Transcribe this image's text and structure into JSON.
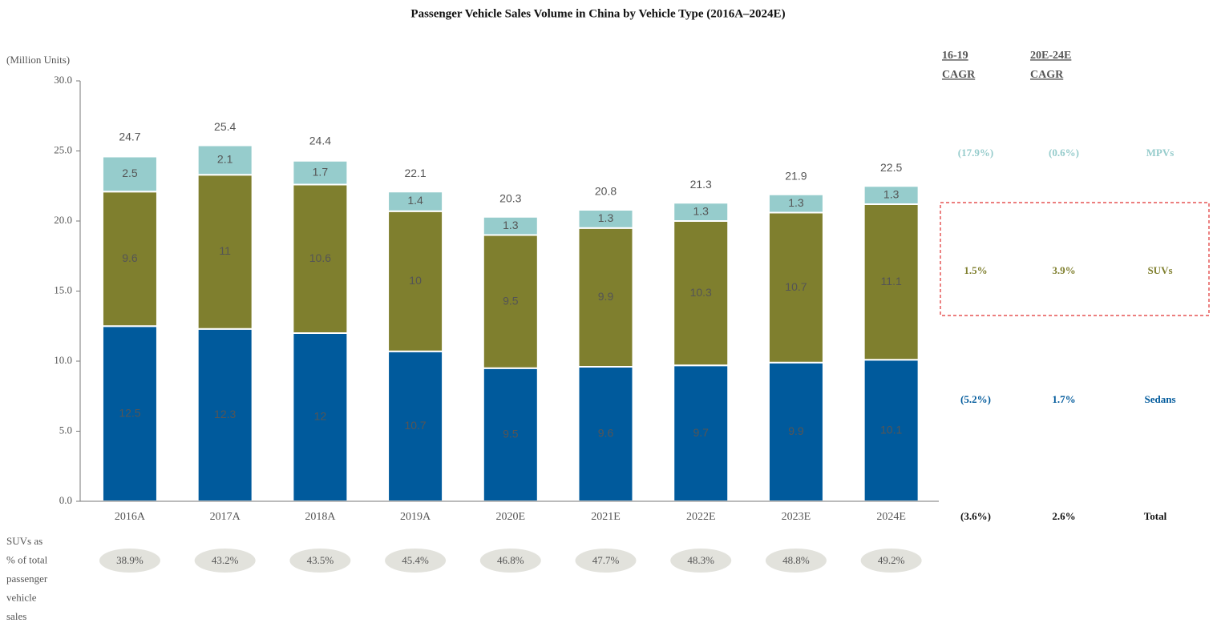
{
  "chart_data": {
    "type": "stacked_bar",
    "title": "Passenger Vehicle Sales Volume in China by Vehicle Type (2016A–2024E)",
    "y_label": "(Million Units)",
    "categories": [
      "2016A",
      "2017A",
      "2018A",
      "2019A",
      "2020E",
      "2021E",
      "2022E",
      "2023E",
      "2024E"
    ],
    "series": [
      {
        "name": "Sedans",
        "color": "#005a9c",
        "label_color": "#ffffff",
        "values": [
          12.5,
          12.3,
          12.0,
          10.7,
          9.5,
          9.6,
          9.7,
          9.9,
          10.1
        ]
      },
      {
        "name": "SUVs",
        "color": "#7f7f2e",
        "label_color": "#ffffff",
        "values": [
          9.6,
          11.0,
          10.6,
          10.0,
          9.5,
          9.9,
          10.3,
          10.7,
          11.1
        ]
      },
      {
        "name": "MPVs",
        "color": "#96cccc",
        "label_color": "#ffffff",
        "values": [
          2.5,
          2.1,
          1.7,
          1.4,
          1.3,
          1.3,
          1.3,
          1.3,
          1.3
        ]
      }
    ],
    "totals": [
      24.7,
      25.4,
      24.4,
      22.1,
      20.3,
      20.8,
      21.3,
      21.9,
      22.5
    ],
    "ylim": [
      0,
      30
    ],
    "yticks": [
      {
        "value": 0,
        "label": "0.0"
      },
      {
        "value": 5,
        "label": "5.0"
      },
      {
        "value": 10,
        "label": "10.0"
      },
      {
        "value": 15,
        "label": "15.0"
      },
      {
        "value": 20,
        "label": "20.0"
      },
      {
        "value": 25,
        "label": "25.0"
      },
      {
        "value": 30,
        "label": "30.0"
      }
    ],
    "cagr": {
      "headers": [
        [
          "16-19",
          "CAGR"
        ],
        [
          "20E-24E",
          "CAGR"
        ]
      ],
      "rows": [
        [
          "(5.2%)",
          "1.7%"
        ],
        [
          "1.5%",
          "3.9%"
        ],
        [
          "(17.9%)",
          "(0.6%)"
        ]
      ],
      "total": {
        "label": "Total",
        "values": [
          "(3.6%)",
          "2.6%"
        ]
      }
    },
    "suv_share": {
      "label": [
        "SUVs as",
        "% of total",
        "passenger",
        "vehicle",
        "sales"
      ],
      "values": [
        38.9,
        43.2,
        43.5,
        45.4,
        46.8,
        47.7,
        48.3,
        48.8,
        49.2
      ],
      "value_labels": [
        "38.9%",
        "43.2%",
        "43.5%",
        "45.4%",
        "46.8%",
        "47.7%",
        "48.3%",
        "48.8%",
        "49.2%"
      ]
    }
  }
}
